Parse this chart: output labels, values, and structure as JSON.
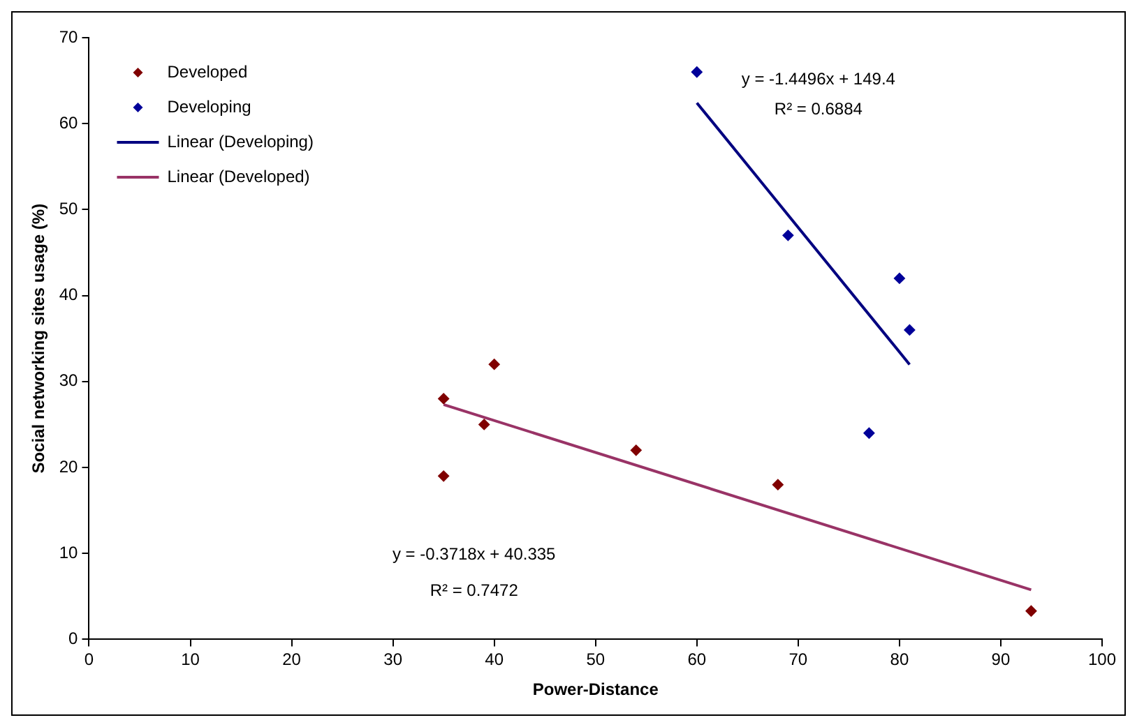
{
  "chart_data": {
    "type": "scatter",
    "xlabel": "Power-Distance",
    "ylabel": "Social networking sites usage (%)",
    "xlim": [
      0,
      100
    ],
    "xticks": [
      0,
      10,
      20,
      30,
      40,
      50,
      60,
      70,
      80,
      90,
      100
    ],
    "ylim": [
      0,
      70
    ],
    "yticks": [
      0,
      10,
      20,
      30,
      40,
      50,
      60,
      70
    ],
    "grid": false,
    "legend": "top left",
    "marker": "diamond",
    "series": [
      {
        "name": "Developed",
        "color": "#800000",
        "x": [
          35,
          35,
          39,
          40,
          54,
          68,
          93
        ],
        "values": [
          28,
          19,
          25,
          32,
          22,
          18,
          3.3
        ]
      },
      {
        "name": "Developing",
        "color": "#000099",
        "x": [
          60,
          69,
          77,
          80,
          81
        ],
        "values": [
          66,
          47,
          24,
          42,
          36
        ]
      },
      {
        "name": "Linear (Developing)",
        "type": "line",
        "marker": "none",
        "color": "#000080",
        "x": [
          60,
          81
        ],
        "values": [
          62.42,
          31.98
        ]
      },
      {
        "name": "Linear (Developed)",
        "type": "line",
        "marker": "none",
        "color": "#993366",
        "x": [
          35,
          93
        ],
        "values": [
          27.32,
          5.76
        ]
      }
    ],
    "annotations": [
      "y = -1.4496x + 149.4",
      "R² = 0.6884",
      "y = -0.3718x + 40.335",
      "R² = 0.7472"
    ]
  }
}
